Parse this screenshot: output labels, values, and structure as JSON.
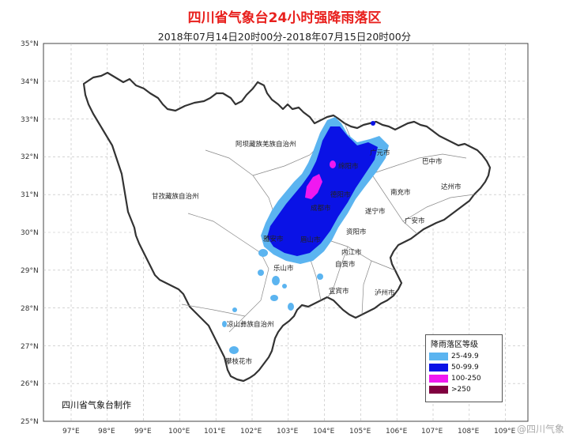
{
  "title": "四川省气象台24小时强降雨落区",
  "subtitle": "2018年07月14日20时00分-2018年07月15日20时00分",
  "credit": "四川省气象台制作",
  "watermark": "@四川气象",
  "axes": {
    "lat_labels": [
      "35°N",
      "34°N",
      "33°N",
      "32°N",
      "31°N",
      "30°N",
      "29°N",
      "28°N",
      "27°N",
      "26°N",
      "25°N"
    ],
    "lon_labels": [
      "97°E",
      "98°E",
      "99°E",
      "100°E",
      "101°E",
      "102°E",
      "103°E",
      "104°E",
      "105°E",
      "106°E",
      "107°E",
      "108°E",
      "109°E"
    ]
  },
  "regions": [
    {
      "name": "阿坝藏族羌族自治州"
    },
    {
      "name": "甘孜藏族自治州"
    },
    {
      "name": "凉山彝族自治州"
    },
    {
      "name": "广元市"
    },
    {
      "name": "巴中市"
    },
    {
      "name": "达州市"
    },
    {
      "name": "绵阳市"
    },
    {
      "name": "德阳市"
    },
    {
      "name": "南充市"
    },
    {
      "name": "遂宁市"
    },
    {
      "name": "广安市"
    },
    {
      "name": "成都市"
    },
    {
      "name": "雅安市"
    },
    {
      "name": "眉山市"
    },
    {
      "name": "资阳市"
    },
    {
      "name": "内江市"
    },
    {
      "name": "自贡市"
    },
    {
      "name": "乐山市"
    },
    {
      "name": "宜宾市"
    },
    {
      "name": "泸州市"
    },
    {
      "name": "攀枝花市"
    }
  ],
  "legend": {
    "title": "降雨落区等级",
    "items": [
      {
        "label": "25-49.9",
        "color": "#5bb4f0"
      },
      {
        "label": "50-99.9",
        "color": "#0a12e6"
      },
      {
        "label": "100-250",
        "color": "#f018f0"
      },
      {
        "label": ">250",
        "color": "#800040"
      }
    ]
  }
}
